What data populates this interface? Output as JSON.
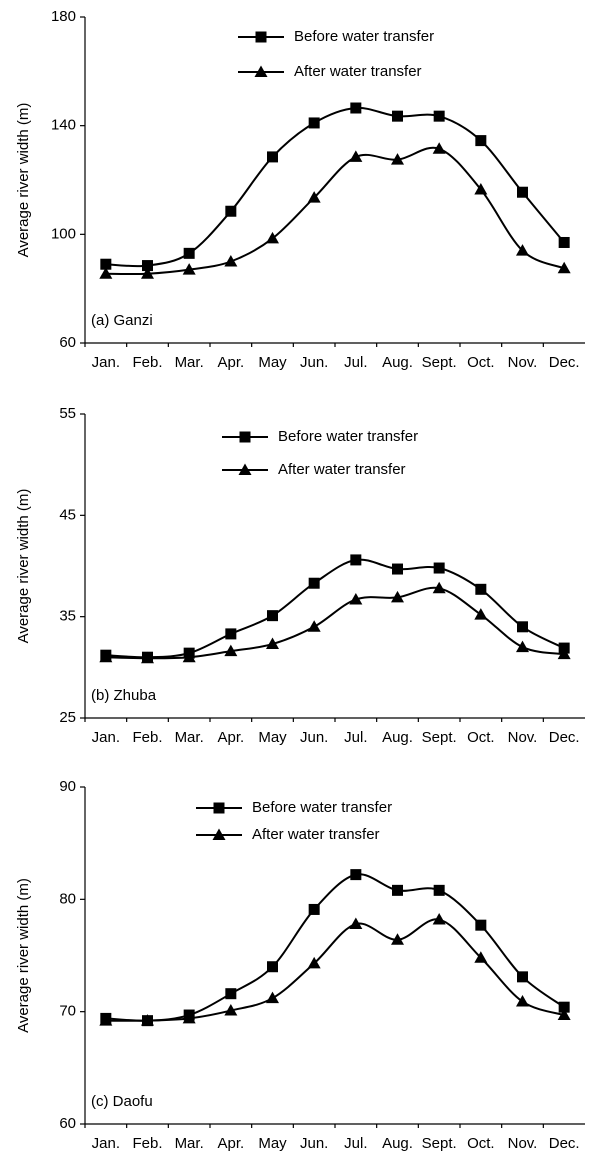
{
  "chart_data": [
    {
      "type": "line",
      "annotation": "(a)  Ganzi",
      "ylabel": "Average river width (m)",
      "categories": [
        "Jan.",
        "Feb.",
        "Mar.",
        "Apr.",
        "May",
        "Jun.",
        "Jul.",
        "Aug.",
        "Sept.",
        "Oct.",
        "Nov.",
        "Dec."
      ],
      "ylim": [
        60,
        180
      ],
      "yticks": [
        60,
        100,
        140,
        180
      ],
      "series": [
        {
          "name": "Before water transfer",
          "color": "#000000",
          "marker": "square",
          "values": [
            89,
            88.5,
            93,
            108.5,
            128.5,
            141,
            146.5,
            143.5,
            143.5,
            134.5,
            115.5,
            97
          ]
        },
        {
          "name": "After water transfer",
          "color": "#000000",
          "marker": "triangle",
          "values": [
            85.5,
            85.5,
            87,
            90,
            98.5,
            113.5,
            128.5,
            127.5,
            131.5,
            116.5,
            94,
            87.5
          ]
        }
      ]
    },
    {
      "type": "line",
      "annotation": "(b)  Zhuba",
      "ylabel": "Average river width (m)",
      "categories": [
        "Jan.",
        "Feb.",
        "Mar.",
        "Apr.",
        "May",
        "Jun.",
        "Jul.",
        "Aug.",
        "Sept.",
        "Oct.",
        "Nov.",
        "Dec."
      ],
      "ylim": [
        25,
        55
      ],
      "yticks": [
        25,
        35,
        45,
        55
      ],
      "series": [
        {
          "name": "Before water transfer",
          "color": "#000000",
          "marker": "square",
          "values": [
            31.2,
            31.0,
            31.4,
            33.3,
            35.1,
            38.3,
            40.6,
            39.7,
            39.8,
            37.7,
            34.0,
            31.9
          ]
        },
        {
          "name": "After water transfer",
          "color": "#000000",
          "marker": "triangle",
          "values": [
            31.0,
            30.9,
            31.0,
            31.6,
            32.3,
            34.0,
            36.7,
            36.9,
            37.8,
            35.2,
            32.0,
            31.3
          ]
        }
      ]
    },
    {
      "type": "line",
      "annotation": "(c)  Daofu",
      "ylabel": "Average river width  (m)",
      "categories": [
        "Jan.",
        "Feb.",
        "Mar.",
        "Apr.",
        "May",
        "Jun.",
        "Jul.",
        "Aug.",
        "Sept.",
        "Oct.",
        "Nov.",
        "Dec."
      ],
      "ylim": [
        60,
        90
      ],
      "yticks": [
        60,
        70,
        80,
        90
      ],
      "series": [
        {
          "name": "Before water transfer",
          "color": "#000000",
          "marker": "square",
          "values": [
            69.4,
            69.2,
            69.7,
            71.6,
            74.0,
            79.1,
            82.2,
            80.8,
            80.8,
            77.7,
            73.1,
            70.4
          ]
        },
        {
          "name": "After water transfer",
          "color": "#000000",
          "marker": "triangle",
          "values": [
            69.2,
            69.2,
            69.4,
            70.1,
            71.2,
            74.3,
            77.8,
            76.4,
            78.2,
            74.8,
            70.9,
            69.7
          ]
        }
      ]
    }
  ]
}
